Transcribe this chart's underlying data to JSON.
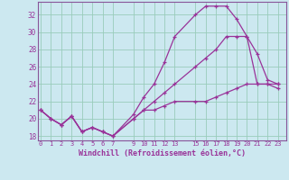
{
  "xlabel": "Windchill (Refroidissement éolien,°C)",
  "background_color": "#cce8f0",
  "grid_color": "#99ccbb",
  "line_color": "#993399",
  "spine_color": "#885599",
  "x_ticks": [
    0,
    1,
    2,
    3,
    4,
    5,
    6,
    7,
    9,
    10,
    11,
    12,
    13,
    15,
    16,
    17,
    18,
    19,
    20,
    21,
    22,
    23
  ],
  "ylim": [
    17.5,
    33.5
  ],
  "yticks": [
    18,
    20,
    22,
    24,
    26,
    28,
    30,
    32
  ],
  "xlim": [
    -0.3,
    23.8
  ],
  "series1_x": [
    0,
    1,
    2,
    3,
    4,
    5,
    6,
    7,
    9,
    10,
    11,
    12,
    13,
    15,
    16,
    17,
    18,
    19,
    20,
    21,
    22,
    23
  ],
  "series1_y": [
    21.0,
    20.0,
    19.3,
    20.3,
    18.5,
    19.0,
    18.5,
    18.0,
    20.5,
    22.5,
    24.0,
    26.5,
    29.5,
    32.0,
    33.0,
    33.0,
    33.0,
    31.5,
    29.5,
    24.0,
    24.0,
    23.5
  ],
  "series2_x": [
    0,
    1,
    2,
    3,
    4,
    5,
    6,
    7,
    9,
    10,
    11,
    12,
    13,
    15,
    16,
    17,
    18,
    19,
    20,
    21,
    22,
    23
  ],
  "series2_y": [
    21.0,
    20.0,
    19.3,
    20.3,
    18.5,
    19.0,
    18.5,
    18.0,
    20.0,
    21.0,
    22.0,
    23.0,
    24.0,
    26.0,
    27.0,
    28.0,
    29.5,
    29.5,
    29.5,
    27.5,
    24.5,
    24.0
  ],
  "series3_x": [
    0,
    1,
    2,
    3,
    4,
    5,
    6,
    7,
    9,
    10,
    11,
    12,
    13,
    15,
    16,
    17,
    18,
    19,
    20,
    21,
    22,
    23
  ],
  "series3_y": [
    21.0,
    20.0,
    19.3,
    20.3,
    18.5,
    19.0,
    18.5,
    18.0,
    20.0,
    21.0,
    21.0,
    21.5,
    22.0,
    22.0,
    22.0,
    22.5,
    23.0,
    23.5,
    24.0,
    24.0,
    24.0,
    24.0
  ]
}
